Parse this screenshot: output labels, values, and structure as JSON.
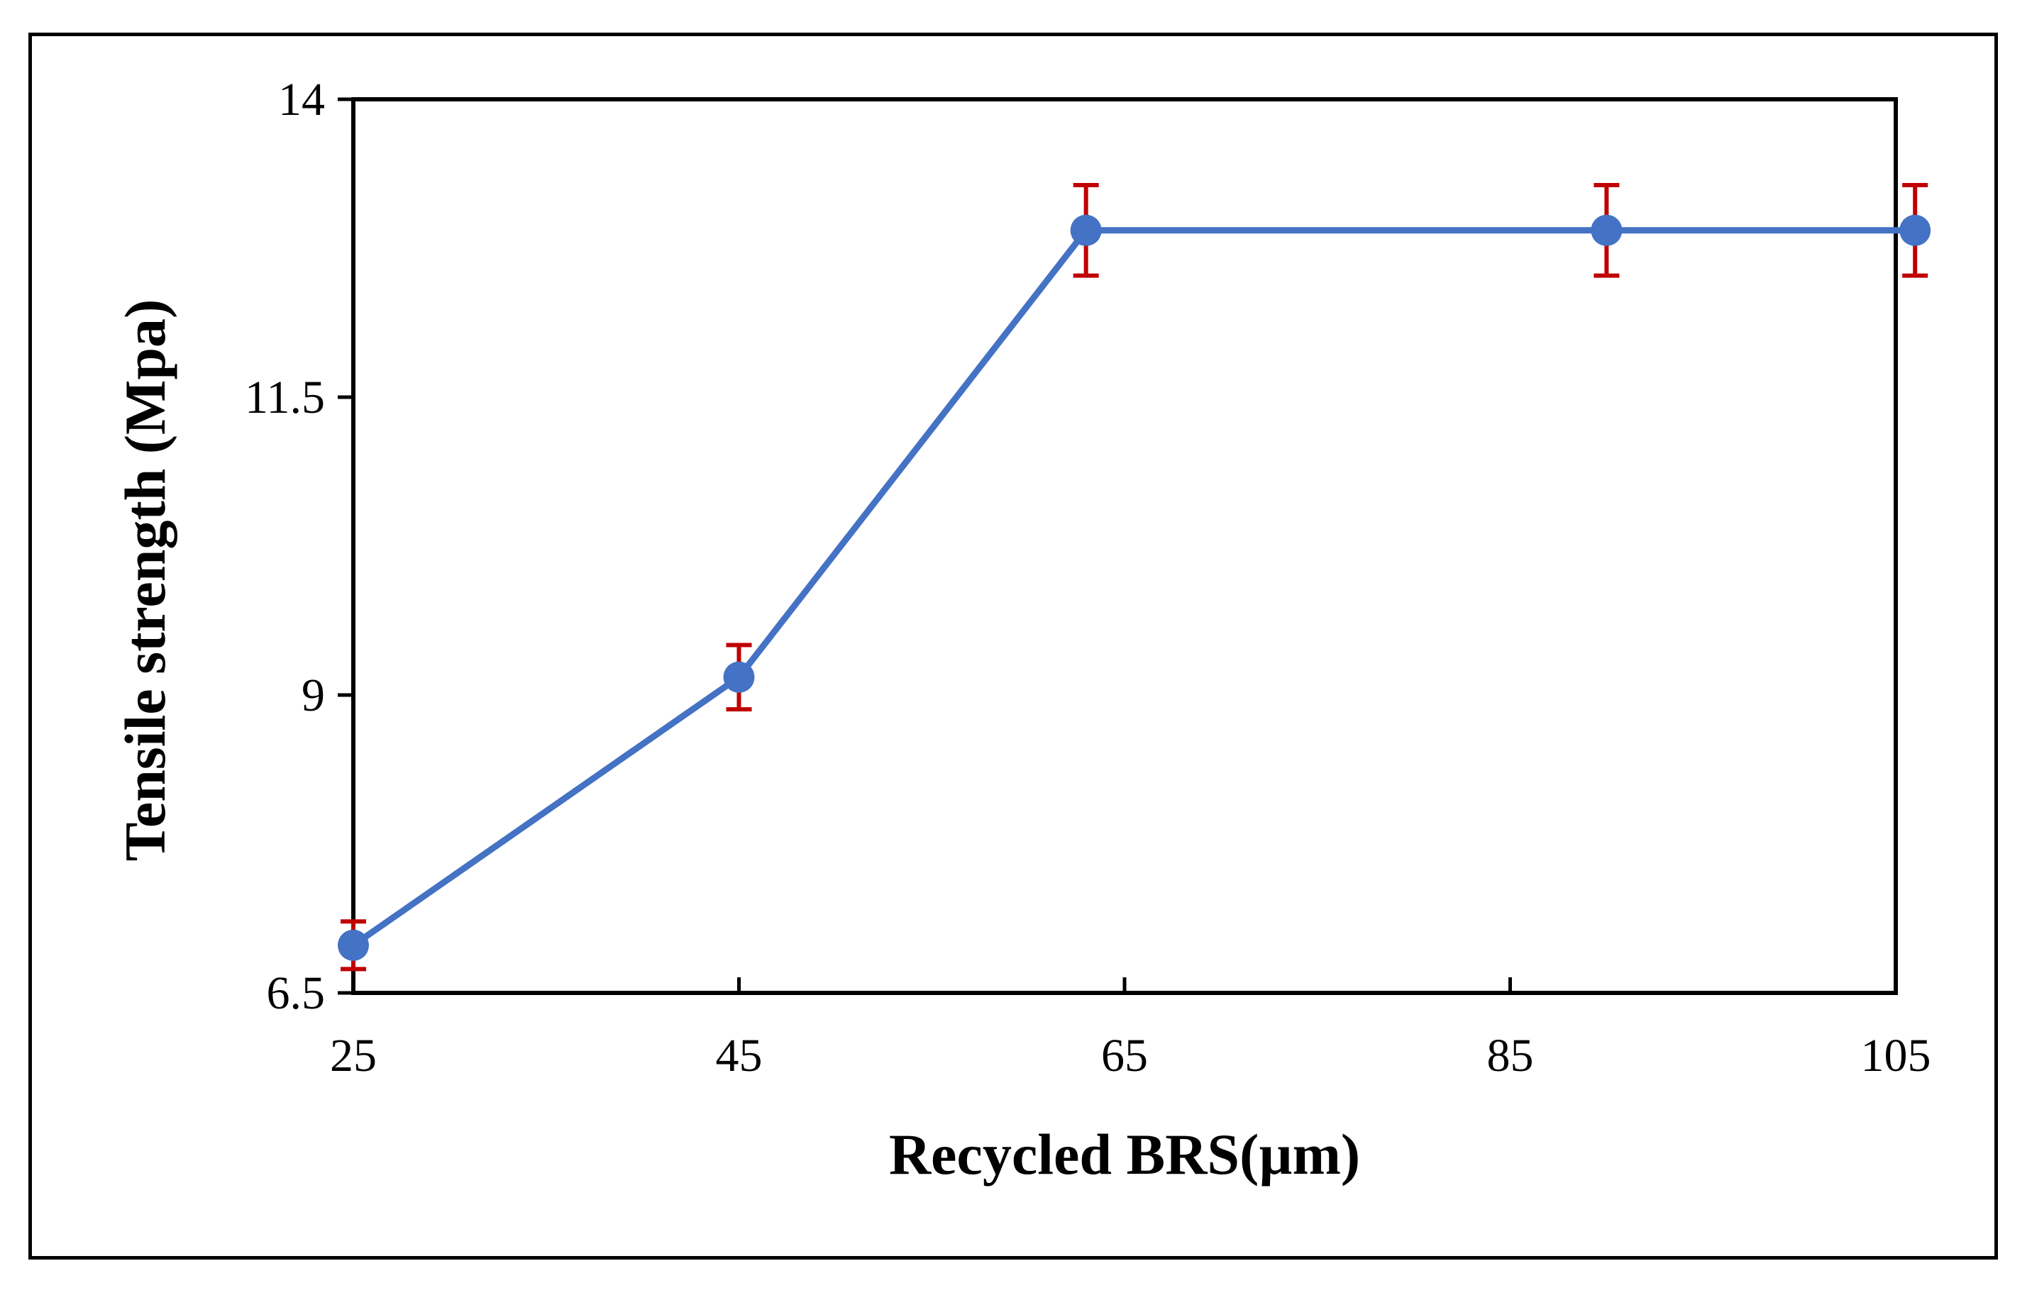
{
  "chart_data": {
    "type": "line",
    "title": "",
    "xlabel": "Recycled BRS(µm)",
    "ylabel": "Tensile strength (Mpa)",
    "xlim": [
      25,
      105
    ],
    "ylim": [
      6.5,
      14
    ],
    "x_ticks": [
      25,
      45,
      65,
      85,
      105
    ],
    "x_tick_labels": [
      "25",
      "45",
      "65",
      "85",
      "105"
    ],
    "y_ticks": [
      6.5,
      9,
      11.5,
      14
    ],
    "y_tick_labels": [
      "6.5",
      "9",
      "11.5",
      "14"
    ],
    "grid": false,
    "legend": "none",
    "series": [
      {
        "x": [
          25,
          45,
          63,
          90,
          106
        ],
        "y": [
          6.9,
          9.15,
          12.9,
          12.9,
          12.9
        ],
        "error": [
          0.2,
          0.27,
          0.38,
          0.38,
          0.38
        ]
      }
    ],
    "colors": {
      "line": "#4472C4",
      "marker": "#4472C4",
      "error_bar": "#C00000"
    }
  }
}
